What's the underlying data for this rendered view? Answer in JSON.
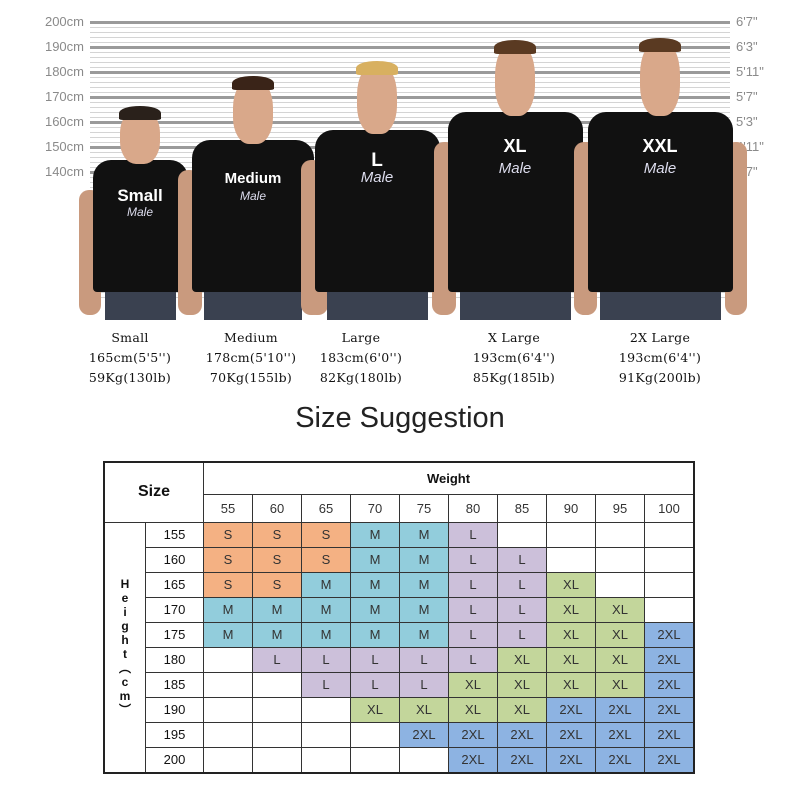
{
  "ruler": {
    "cm": [
      "200cm",
      "190cm",
      "180cm",
      "170cm",
      "160cm",
      "150cm",
      "140cm"
    ],
    "ft": [
      "6'7\"",
      "6'3\"",
      "5'11\"",
      "5'7\"",
      "5'3\"",
      "4'11\"",
      "4'7\""
    ]
  },
  "models": [
    {
      "shirt": "Small",
      "gender": "Male",
      "name": "Small",
      "height": "165cm(5'5'')",
      "weight": "59Kg(130lb)"
    },
    {
      "shirt": "Medium",
      "gender": "Male",
      "name": "Medium",
      "height": "178cm(5'10'')",
      "weight": "70Kg(155lb)"
    },
    {
      "shirt": "L",
      "gender": "Male",
      "name": "Large",
      "height": "183cm(6'0'')",
      "weight": "82Kg(180lb)"
    },
    {
      "shirt": "XL",
      "gender": "Male",
      "name": "X Large",
      "height": "193cm(6'4'')",
      "weight": "85Kg(185lb)"
    },
    {
      "shirt": "XXL",
      "gender": "Male",
      "name": "2X Large",
      "height": "193cm(6'4'')",
      "weight": "91Kg(200lb)"
    }
  ],
  "title": "Size Suggestion",
  "table": {
    "corner": "Size",
    "weight_label": "Weight",
    "height_label": "Height(cm)",
    "weights": [
      "55",
      "60",
      "65",
      "70",
      "75",
      "80",
      "85",
      "90",
      "95",
      "100"
    ],
    "heights": [
      "155",
      "160",
      "165",
      "170",
      "175",
      "180",
      "185",
      "190",
      "195",
      "200"
    ],
    "rows": [
      [
        "S",
        "S",
        "S",
        "M",
        "M",
        "L",
        "",
        "",
        "",
        ""
      ],
      [
        "S",
        "S",
        "S",
        "M",
        "M",
        "L",
        "L",
        "",
        "",
        ""
      ],
      [
        "S",
        "S",
        "M",
        "M",
        "M",
        "L",
        "L",
        "XL",
        "",
        ""
      ],
      [
        "M",
        "M",
        "M",
        "M",
        "M",
        "L",
        "L",
        "XL",
        "XL",
        ""
      ],
      [
        "M",
        "M",
        "M",
        "M",
        "M",
        "L",
        "L",
        "XL",
        "XL",
        "2XL"
      ],
      [
        "",
        "L",
        "L",
        "L",
        "L",
        "L",
        "XL",
        "XL",
        "XL",
        "2XL"
      ],
      [
        "",
        "",
        "L",
        "L",
        "L",
        "XL",
        "XL",
        "XL",
        "XL",
        "2XL"
      ],
      [
        "",
        "",
        "",
        "XL",
        "XL",
        "XL",
        "XL",
        "2XL",
        "2XL",
        "2XL"
      ],
      [
        "",
        "",
        "",
        "",
        "2XL",
        "2XL",
        "2XL",
        "2XL",
        "2XL",
        "2XL"
      ],
      [
        "",
        "",
        "",
        "",
        "",
        "2XL",
        "2XL",
        "2XL",
        "2XL",
        "2XL"
      ]
    ],
    "colors": {
      "S": "#f4b183",
      "M": "#92cddc",
      "L": "#ccc0da",
      "XL": "#c3d69b",
      "2XL": "#8db3e2"
    }
  }
}
